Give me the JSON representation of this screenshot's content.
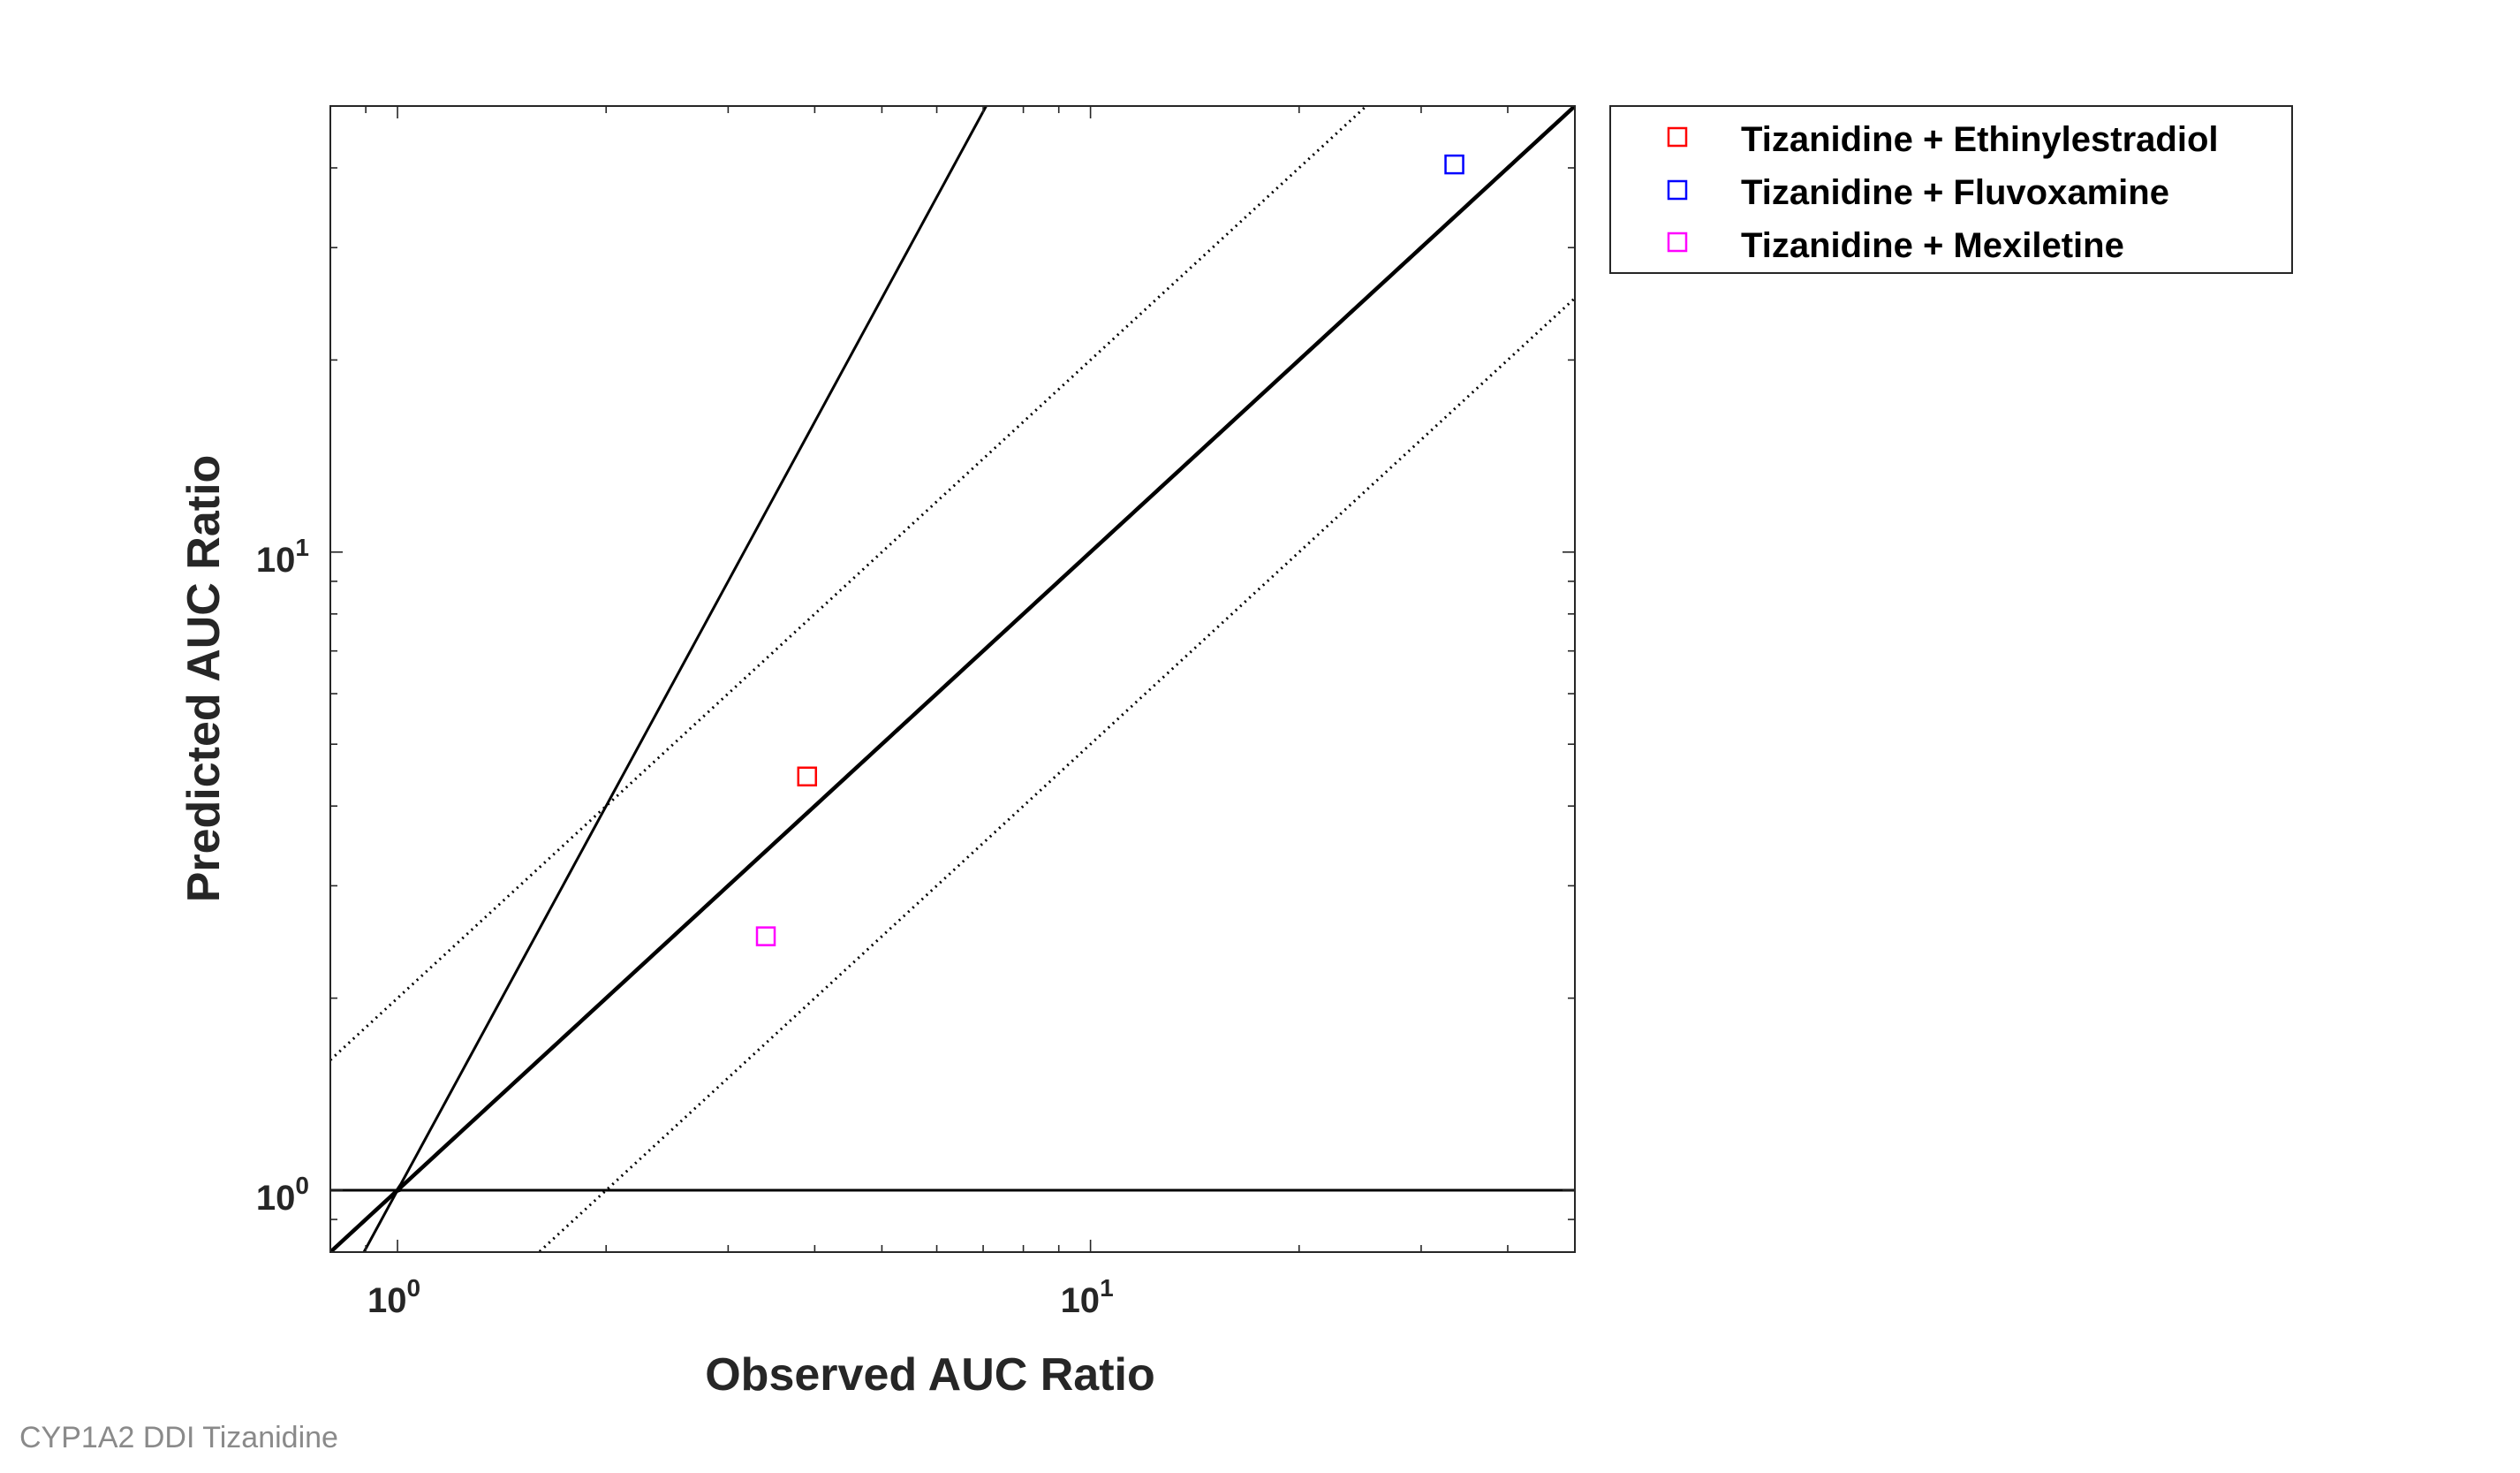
{
  "footer_caption": "CYP1A2 DDI Tizanidine",
  "chart_data": {
    "type": "scatter",
    "title": "",
    "xlabel": "Observed AUC Ratio",
    "ylabel": "Predicted AUC Ratio",
    "x_scale": "log",
    "y_scale": "log",
    "xlim": [
      0.8,
      50
    ],
    "ylim": [
      0.8,
      50
    ],
    "x_tick_labels": [
      {
        "value": 1,
        "base": "10",
        "exp": "0"
      },
      {
        "value": 10,
        "base": "10",
        "exp": "1"
      }
    ],
    "y_tick_labels": [
      {
        "value": 1,
        "base": "10",
        "exp": "0"
      },
      {
        "value": 10,
        "base": "10",
        "exp": "1"
      }
    ],
    "grid": false,
    "legend_position": "outside-top-right",
    "series": [
      {
        "name": "Tizanidine + Ethinylestradiol",
        "color": "#ff0000",
        "marker": "square",
        "points": [
          {
            "x": 3.9,
            "y": 4.45
          }
        ]
      },
      {
        "name": "Tizanidine + Fluvoxamine",
        "color": "#0000ff",
        "marker": "square",
        "points": [
          {
            "x": 33.5,
            "y": 40.5
          }
        ]
      },
      {
        "name": "Tizanidine + Mexiletine",
        "color": "#ff00ff",
        "marker": "square",
        "points": [
          {
            "x": 3.4,
            "y": 2.5
          }
        ]
      }
    ],
    "reference_lines": [
      {
        "type": "identity",
        "style": "solid-thick"
      },
      {
        "type": "fold",
        "fold": 2,
        "style": "dotted"
      },
      {
        "type": "guest_limit",
        "delta": 2,
        "style": "solid"
      }
    ]
  }
}
